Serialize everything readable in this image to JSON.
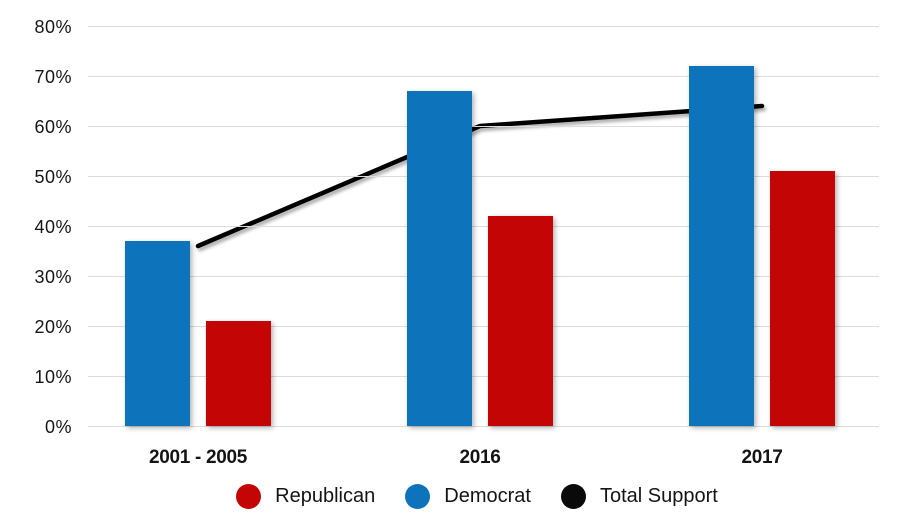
{
  "chart_data": {
    "type": "bar",
    "subtype": "grouped bars with overlaid line",
    "categories": [
      "2001 - 2005",
      "2016",
      "2017"
    ],
    "series": [
      {
        "name": "Democrat",
        "type": "bar",
        "color": "#0d73bb",
        "values": [
          37,
          67,
          72
        ]
      },
      {
        "name": "Republican",
        "type": "bar",
        "color": "#c40505",
        "values": [
          21,
          42,
          51
        ]
      },
      {
        "name": "Total Support",
        "type": "line",
        "color": "#000000",
        "values": [
          36,
          60,
          64
        ]
      }
    ],
    "title": "",
    "xlabel": "",
    "ylabel": "",
    "ylim": [
      0,
      80
    ],
    "yticks": [
      "80%",
      "70%",
      "60%",
      "50%",
      "40%",
      "30%",
      "20%",
      "10%",
      "0%"
    ],
    "grid": true,
    "gridline_color": "#dcdcdc",
    "legend_position": "bottom",
    "legend": [
      {
        "label": "Republican",
        "color": "#c40505"
      },
      {
        "label": "Democrat",
        "color": "#0d73bb"
      },
      {
        "label": "Total Support",
        "color": "#0a0a0a"
      }
    ]
  }
}
